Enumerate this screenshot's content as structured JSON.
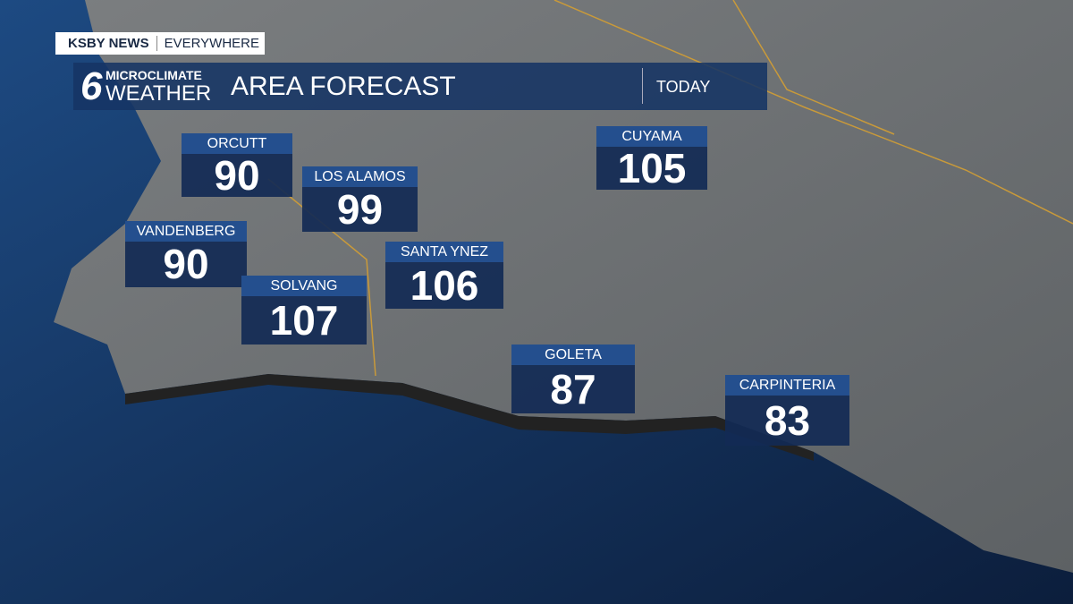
{
  "header": {
    "brand": "KSBY NEWS",
    "tagline": "EVERYWHERE",
    "logo_number": "6",
    "logo_top": "MICROCLIMATE",
    "logo_bottom": "WEATHER",
    "title": "AREA FORECAST",
    "period": "TODAY"
  },
  "locations": [
    {
      "name": "ORCUTT",
      "temp": 90
    },
    {
      "name": "LOS ALAMOS",
      "temp": 99
    },
    {
      "name": "VANDENBERG",
      "temp": 90
    },
    {
      "name": "SOLVANG",
      "temp": 107
    },
    {
      "name": "SANTA YNEZ",
      "temp": 106
    },
    {
      "name": "CUYAMA",
      "temp": 105
    },
    {
      "name": "GOLETA",
      "temp": 87
    },
    {
      "name": "CARPINTERIA",
      "temp": 83
    }
  ]
}
